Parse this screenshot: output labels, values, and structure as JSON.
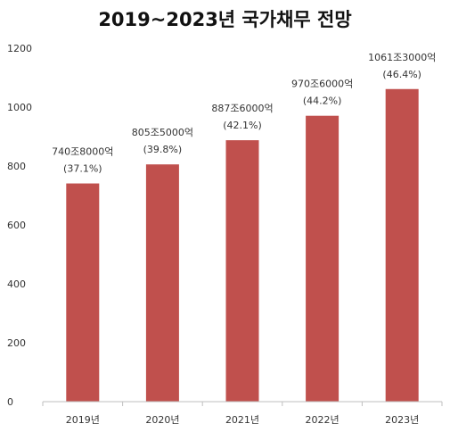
{
  "chart_data": {
    "type": "bar",
    "title": "2019~2023년 국가채무 전망",
    "categories": [
      "2019년",
      "2020년",
      "2021년",
      "2022년",
      "2023년"
    ],
    "values": [
      740.8,
      805.5,
      887.6,
      970.6,
      1061.3
    ],
    "value_labels": [
      "740조8000억",
      "805조5000억",
      "887조6000억",
      "970조6000억",
      "1061조3000억"
    ],
    "percent_labels": [
      "(37.1%)",
      "(39.8%)",
      "(42.1%)",
      "(44.2%)",
      "(46.4%)"
    ],
    "yticks": [
      "0",
      "200",
      "400",
      "600",
      "800",
      "1000",
      "1200"
    ],
    "ylim": [
      0,
      1200
    ],
    "grid": false,
    "legend": "none",
    "bar_color": "#c0504d",
    "axis_color": "#bfbfbf"
  }
}
